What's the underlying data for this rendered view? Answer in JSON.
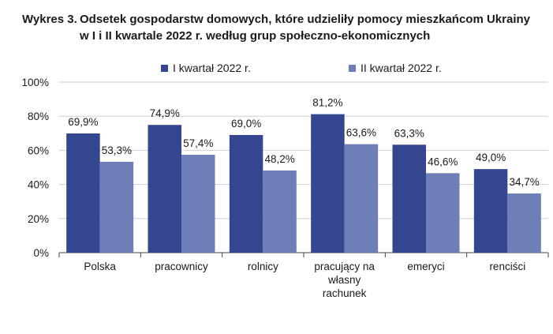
{
  "figure": {
    "prefix": "Wykres 3.",
    "title_line1": "Odsetek gospodarstw domowych, które udzieliły pomocy mieszkańcom Ukrainy",
    "title_line2": "w I i II kwartale 2022 r. według grup społeczno-ekonomicznych"
  },
  "chart_data": {
    "type": "bar",
    "categories": [
      [
        "Polska"
      ],
      [
        "pracownicy"
      ],
      [
        "rolnicy"
      ],
      [
        "pracujący na",
        "własny",
        "rachunek"
      ],
      [
        "emeryci"
      ],
      [
        "renciści"
      ]
    ],
    "series": [
      {
        "name": "I kwartał 2022 r.",
        "color": "#34468f",
        "values": [
          69.9,
          74.9,
          69.0,
          81.2,
          63.3,
          49.0
        ],
        "labels": [
          "69,9%",
          "74,9%",
          "69,0%",
          "81,2%",
          "63,3%",
          "49,0%"
        ]
      },
      {
        "name": "II kwartał 2022 r.",
        "color": "#6d7fb6",
        "values": [
          53.3,
          57.4,
          48.2,
          63.6,
          46.6,
          34.7
        ],
        "labels": [
          "53,3%",
          "57,4%",
          "48,2%",
          "63,6%",
          "46,6%",
          "34,7%"
        ]
      }
    ],
    "yticks": [
      0,
      20,
      40,
      60,
      80,
      100
    ],
    "ytick_labels": [
      "0%",
      "20%",
      "40%",
      "60%",
      "80%",
      "100%"
    ],
    "ylim": [
      0,
      100
    ],
    "grid": true,
    "legend": "top"
  }
}
